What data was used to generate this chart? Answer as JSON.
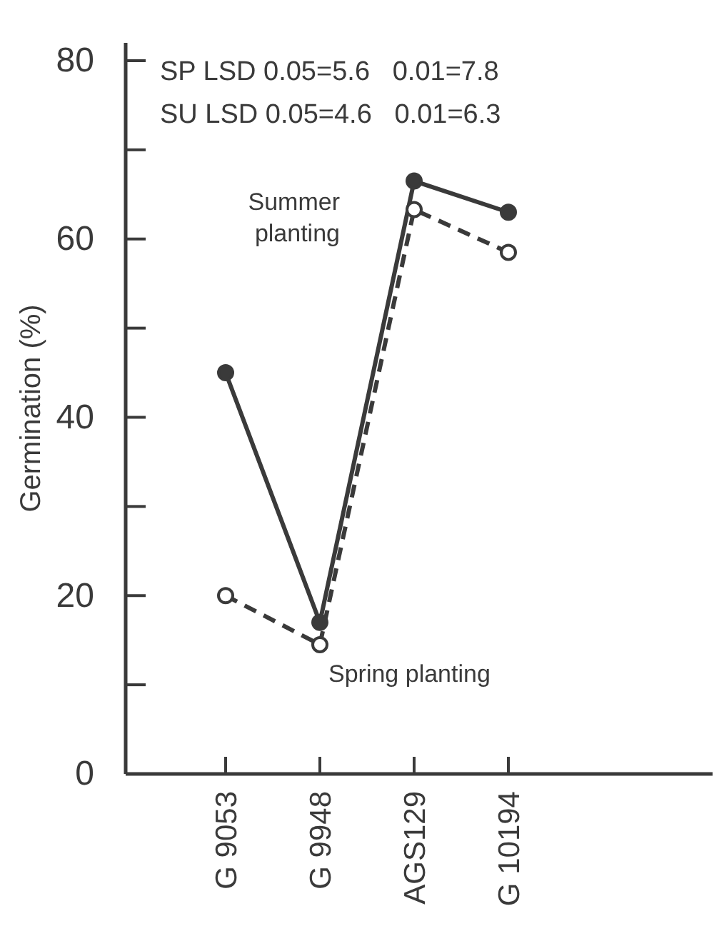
{
  "chart_data": {
    "type": "line",
    "ylabel": "Germination (%)",
    "categories": [
      "G 9053",
      "G 9948",
      "AGS129",
      "G 10194"
    ],
    "series": [
      {
        "name": "Summer planting",
        "color": "#3a3a3a",
        "values": [
          45,
          17,
          66.5,
          63
        ],
        "line_style": "solid"
      },
      {
        "name": "Spring planting",
        "color": "#3a3a3a",
        "values": [
          20,
          14.5,
          63.3,
          58.5
        ],
        "line_style": "dashed"
      }
    ],
    "ylim": [
      0,
      82
    ],
    "yticks": [
      0,
      20,
      40,
      60,
      80
    ],
    "marker": "circle",
    "grid": false,
    "annotations": [
      "SP LSD 0.05=5.6   0.01=7.8",
      "SU LSD 0.05=4.6   0.01=6.3"
    ]
  }
}
